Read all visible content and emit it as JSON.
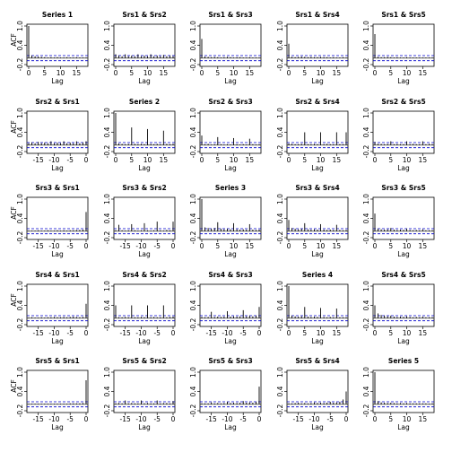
{
  "chart_data": {
    "type": "bar",
    "layout": "5x5 matrix of autocorrelation / cross-correlation plots",
    "xlabel": "Lag",
    "ylabel": "ACF",
    "ylim": [
      -0.2,
      1.0
    ],
    "y_ticks": [
      "-0.2",
      "0.4",
      "1.0"
    ],
    "x_ticks_positive": [
      "0",
      "5",
      "10",
      "15"
    ],
    "x_ticks_negative": [
      "-15",
      "-10",
      "-5",
      "0"
    ],
    "xlim_positive": [
      0,
      18
    ],
    "xlim_negative": [
      -18,
      0
    ],
    "confidence_bound": 0.08,
    "colors": {
      "bars": "#000000",
      "bounds": "#0000CC",
      "zero_line": "#000000"
    },
    "panels": [
      {
        "title": "Series  1",
        "side": "pos",
        "values": [
          1.0,
          0.08,
          0.06,
          0.05,
          0.04,
          0.03,
          0.02,
          0.03,
          0.02,
          0.03,
          0.02,
          0.02,
          0.03,
          0.02,
          0.02,
          0.03,
          0.02,
          0.02,
          0.02
        ]
      },
      {
        "title": "Srs1 & Srs2",
        "side": "pos",
        "values": [
          0.12,
          0.08,
          0.06,
          0.12,
          0.06,
          0.08,
          0.06,
          0.12,
          0.06,
          0.08,
          0.06,
          0.12,
          0.06,
          0.08,
          0.06,
          0.1,
          0.06,
          0.08,
          0.06
        ]
      },
      {
        "title": "Srs1 & Srs3",
        "side": "pos",
        "values": [
          0.6,
          0.05,
          0.04,
          0.03,
          0.04,
          0.03,
          0.02,
          0.03,
          0.04,
          0.03,
          0.02,
          0.03,
          0.03,
          0.02,
          0.02,
          0.03,
          0.02,
          0.02,
          0.02
        ]
      },
      {
        "title": "Srs1 & Srs4",
        "side": "pos",
        "values": [
          0.45,
          0.04,
          0.03,
          0.04,
          0.05,
          0.04,
          0.03,
          0.04,
          0.03,
          0.03,
          0.04,
          0.03,
          0.03,
          0.02,
          0.03,
          0.02,
          0.02,
          0.03,
          0.02
        ]
      },
      {
        "title": "Srs1 & Srs5",
        "side": "pos",
        "values": [
          0.75,
          0.04,
          0.03,
          0.03,
          0.04,
          0.03,
          0.02,
          0.03,
          0.02,
          0.02,
          0.03,
          0.02,
          0.02,
          0.02,
          0.02,
          0.02,
          0.02,
          0.02,
          0.02
        ]
      },
      {
        "title": "Srs2 & Srs1",
        "side": "neg",
        "values": [
          0.06,
          0.08,
          0.06,
          0.1,
          0.06,
          0.08,
          0.06,
          0.12,
          0.06,
          0.08,
          0.06,
          0.12,
          0.06,
          0.08,
          0.06,
          0.12,
          0.06,
          0.08,
          0.12
        ]
      },
      {
        "title": "Series  2",
        "side": "pos",
        "values": [
          1.0,
          0.05,
          0.04,
          0.03,
          0.04,
          0.55,
          0.04,
          0.03,
          0.04,
          0.03,
          0.5,
          0.04,
          0.03,
          0.04,
          0.03,
          0.45,
          0.04,
          0.03,
          0.04
        ]
      },
      {
        "title": "Srs2 & Srs3",
        "side": "pos",
        "values": [
          0.3,
          0.03,
          0.04,
          0.02,
          0.03,
          0.25,
          0.03,
          0.02,
          0.03,
          0.02,
          0.22,
          0.03,
          0.02,
          0.03,
          0.02,
          0.2,
          0.03,
          0.02,
          0.03
        ]
      },
      {
        "title": "Srs2 & Srs4",
        "side": "pos",
        "values": [
          0.05,
          0.04,
          0.03,
          0.03,
          0.04,
          0.4,
          0.03,
          0.03,
          0.04,
          0.03,
          0.4,
          0.03,
          0.04,
          0.03,
          0.03,
          0.4,
          0.03,
          0.03,
          0.4
        ]
      },
      {
        "title": "Srs2 & Srs5",
        "side": "pos",
        "values": [
          0.1,
          0.04,
          0.04,
          0.03,
          0.04,
          0.12,
          0.03,
          0.04,
          0.03,
          0.03,
          0.12,
          0.03,
          0.04,
          0.03,
          0.03,
          0.12,
          0.03,
          0.04,
          0.03
        ]
      },
      {
        "title": "Srs3 & Srs1",
        "side": "neg",
        "values": [
          0.02,
          0.02,
          0.02,
          0.03,
          0.02,
          0.02,
          0.03,
          0.02,
          0.02,
          0.03,
          0.02,
          0.03,
          0.02,
          0.03,
          0.03,
          0.04,
          0.04,
          0.05,
          0.6
        ]
      },
      {
        "title": "Srs3 & Srs2",
        "side": "neg",
        "values": [
          0.03,
          0.2,
          0.03,
          0.02,
          0.03,
          0.22,
          0.03,
          0.02,
          0.03,
          0.25,
          0.03,
          0.02,
          0.03,
          0.3,
          0.03,
          0.02,
          0.04,
          0.03,
          0.3
        ]
      },
      {
        "title": "Series  3",
        "side": "pos",
        "values": [
          1.0,
          0.12,
          0.1,
          0.08,
          0.1,
          0.28,
          0.08,
          0.06,
          0.08,
          0.06,
          0.25,
          0.06,
          0.05,
          0.06,
          0.05,
          0.22,
          0.05,
          0.04,
          0.05
        ]
      },
      {
        "title": "Srs3 & Srs4",
        "side": "pos",
        "values": [
          0.35,
          0.1,
          0.08,
          0.06,
          0.08,
          0.25,
          0.06,
          0.05,
          0.06,
          0.05,
          0.22,
          0.05,
          0.04,
          0.05,
          0.04,
          0.2,
          0.04,
          0.03,
          0.04
        ]
      },
      {
        "title": "Srs3 & Srs5",
        "side": "pos",
        "values": [
          0.55,
          0.08,
          0.06,
          0.05,
          0.06,
          0.1,
          0.05,
          0.04,
          0.05,
          0.04,
          0.08,
          0.04,
          0.03,
          0.04,
          0.03,
          0.06,
          0.03,
          0.03,
          0.03
        ]
      },
      {
        "title": "Srs4 & Srs1",
        "side": "neg",
        "values": [
          0.02,
          0.03,
          0.02,
          0.02,
          0.03,
          0.02,
          0.03,
          0.03,
          0.04,
          0.03,
          0.03,
          0.04,
          0.03,
          0.04,
          0.05,
          0.04,
          0.03,
          0.04,
          0.45
        ]
      },
      {
        "title": "Srs4 & Srs2",
        "side": "neg",
        "values": [
          0.4,
          0.03,
          0.03,
          0.04,
          0.03,
          0.4,
          0.03,
          0.03,
          0.04,
          0.03,
          0.4,
          0.03,
          0.04,
          0.03,
          0.03,
          0.4,
          0.03,
          0.04,
          0.05
        ]
      },
      {
        "title": "Srs4 & Srs3",
        "side": "neg",
        "values": [
          0.04,
          0.03,
          0.04,
          0.2,
          0.04,
          0.05,
          0.04,
          0.05,
          0.22,
          0.05,
          0.06,
          0.05,
          0.06,
          0.25,
          0.06,
          0.08,
          0.06,
          0.08,
          0.35
        ]
      },
      {
        "title": "Series  4",
        "side": "pos",
        "values": [
          1.0,
          0.08,
          0.06,
          0.05,
          0.06,
          0.35,
          0.05,
          0.04,
          0.05,
          0.04,
          0.32,
          0.04,
          0.03,
          0.04,
          0.03,
          0.3,
          0.03,
          0.03,
          0.03
        ]
      },
      {
        "title": "Srs4 & Srs5",
        "side": "pos",
        "values": [
          0.4,
          0.15,
          0.1,
          0.08,
          0.06,
          0.08,
          0.05,
          0.04,
          0.05,
          0.04,
          0.06,
          0.04,
          0.03,
          0.04,
          0.03,
          0.05,
          0.03,
          0.03,
          0.03
        ]
      },
      {
        "title": "Srs5 & Srs1",
        "side": "neg",
        "values": [
          0.02,
          0.02,
          0.02,
          0.02,
          0.02,
          0.02,
          0.02,
          0.02,
          0.02,
          0.02,
          0.02,
          0.02,
          0.02,
          0.03,
          0.03,
          0.03,
          0.03,
          0.04,
          0.75
        ]
      },
      {
        "title": "Srs5 & Srs2",
        "side": "neg",
        "values": [
          0.03,
          0.04,
          0.03,
          0.12,
          0.03,
          0.04,
          0.03,
          0.03,
          0.12,
          0.03,
          0.04,
          0.03,
          0.03,
          0.12,
          0.03,
          0.04,
          0.04,
          0.03,
          0.1
        ]
      },
      {
        "title": "Srs5 & Srs3",
        "side": "neg",
        "values": [
          0.03,
          0.03,
          0.03,
          0.06,
          0.03,
          0.04,
          0.03,
          0.04,
          0.08,
          0.04,
          0.05,
          0.04,
          0.05,
          0.1,
          0.05,
          0.06,
          0.05,
          0.08,
          0.55
        ]
      },
      {
        "title": "Srs5 & Srs4",
        "side": "neg",
        "values": [
          0.03,
          0.03,
          0.04,
          0.05,
          0.03,
          0.04,
          0.03,
          0.04,
          0.06,
          0.04,
          0.05,
          0.04,
          0.05,
          0.08,
          0.05,
          0.06,
          0.08,
          0.15,
          0.4
        ]
      },
      {
        "title": "Series  5",
        "side": "pos",
        "values": [
          1.0,
          0.1,
          0.06,
          0.05,
          0.04,
          0.05,
          0.04,
          0.03,
          0.04,
          0.03,
          0.04,
          0.03,
          0.03,
          0.03,
          0.03,
          0.03,
          0.03,
          0.02,
          0.03
        ]
      }
    ]
  }
}
